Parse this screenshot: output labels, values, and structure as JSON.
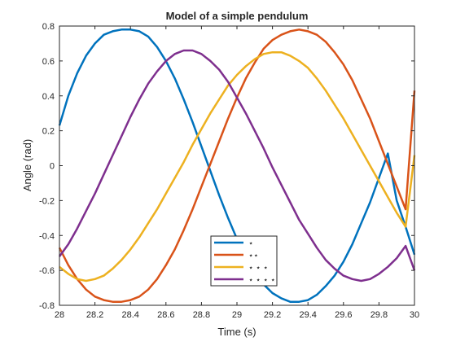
{
  "chart_data": {
    "type": "line",
    "title": "Model of a simple pendulum",
    "xlabel": "Time (s)",
    "ylabel": "Angle (rad)",
    "xlim": [
      28,
      30
    ],
    "ylim": [
      -0.8,
      0.8
    ],
    "xticks": [
      28,
      28.2,
      28.4,
      28.6,
      28.8,
      29,
      29.2,
      29.4,
      29.6,
      29.8,
      30
    ],
    "xtick_labels": [
      "28",
      "28.2",
      "28.4",
      "28.6",
      "28.8",
      "29",
      "29.2",
      "29.4",
      "29.6",
      "29.8",
      "30"
    ],
    "yticks": [
      -0.8,
      -0.6,
      -0.4,
      -0.2,
      0,
      0.2,
      0.4,
      0.6,
      0.8
    ],
    "ytick_labels": [
      "-0.8",
      "-0.6",
      "-0.4",
      "-0.2",
      "0",
      "0.2",
      "0.4",
      "0.6",
      "0.8"
    ],
    "grid": false,
    "legend_position": "bottom-center",
    "series": [
      {
        "name": "⋆",
        "color": "#0072BD",
        "x": [
          28.0,
          28.05,
          28.1,
          28.15,
          28.2,
          28.25,
          28.3,
          28.35,
          28.4,
          28.45,
          28.5,
          28.55,
          28.6,
          28.65,
          28.7,
          28.75,
          28.8,
          28.85,
          28.9,
          28.95,
          29.0,
          29.05,
          29.1,
          29.15,
          29.2,
          29.25,
          29.3,
          29.35,
          29.4,
          29.45,
          29.5,
          29.55,
          29.6,
          29.65,
          29.7,
          29.75,
          29.8,
          29.85,
          29.9,
          29.95,
          30.0
        ],
        "y": [
          0.23,
          0.4,
          0.53,
          0.63,
          0.7,
          0.75,
          0.77,
          0.78,
          0.78,
          0.77,
          0.74,
          0.68,
          0.6,
          0.5,
          0.38,
          0.25,
          0.11,
          -0.03,
          -0.17,
          -0.3,
          -0.42,
          -0.52,
          -0.61,
          -0.68,
          -0.73,
          -0.76,
          -0.78,
          -0.78,
          -0.77,
          -0.74,
          -0.69,
          -0.63,
          -0.55,
          -0.45,
          -0.33,
          -0.21,
          -0.07,
          0.07,
          -0.2,
          -0.35,
          -0.51
        ]
      },
      {
        "name": "⋆⋆",
        "color": "#D95319",
        "x": [
          28.0,
          28.05,
          28.1,
          28.15,
          28.2,
          28.25,
          28.3,
          28.35,
          28.4,
          28.45,
          28.5,
          28.55,
          28.6,
          28.65,
          28.7,
          28.75,
          28.8,
          28.85,
          28.9,
          28.95,
          29.0,
          29.05,
          29.1,
          29.15,
          29.2,
          29.25,
          29.3,
          29.35,
          29.4,
          29.45,
          29.5,
          29.55,
          29.6,
          29.65,
          29.7,
          29.75,
          29.8,
          29.85,
          29.9,
          29.95,
          30.0
        ],
        "y": [
          -0.47,
          -0.57,
          -0.65,
          -0.71,
          -0.75,
          -0.77,
          -0.78,
          -0.78,
          -0.77,
          -0.75,
          -0.71,
          -0.65,
          -0.57,
          -0.48,
          -0.37,
          -0.25,
          -0.12,
          0.01,
          0.14,
          0.27,
          0.39,
          0.5,
          0.59,
          0.67,
          0.72,
          0.75,
          0.77,
          0.78,
          0.77,
          0.75,
          0.71,
          0.65,
          0.58,
          0.49,
          0.38,
          0.27,
          0.14,
          0.01,
          -0.12,
          -0.25,
          0.43
        ]
      },
      {
        "name": "⋆ ⋆ ⋆",
        "color": "#EDB120",
        "x": [
          28.0,
          28.05,
          28.1,
          28.15,
          28.2,
          28.25,
          28.3,
          28.35,
          28.4,
          28.45,
          28.5,
          28.55,
          28.6,
          28.65,
          28.7,
          28.75,
          28.8,
          28.85,
          28.9,
          28.95,
          29.0,
          29.05,
          29.1,
          29.15,
          29.2,
          29.25,
          29.3,
          29.35,
          29.4,
          29.45,
          29.5,
          29.55,
          29.6,
          29.65,
          29.7,
          29.75,
          29.8,
          29.85,
          29.9,
          29.95,
          30.0
        ],
        "y": [
          -0.58,
          -0.62,
          -0.65,
          -0.66,
          -0.65,
          -0.63,
          -0.59,
          -0.54,
          -0.48,
          -0.41,
          -0.33,
          -0.25,
          -0.16,
          -0.07,
          0.02,
          0.12,
          0.21,
          0.3,
          0.38,
          0.46,
          0.52,
          0.57,
          0.61,
          0.64,
          0.65,
          0.65,
          0.63,
          0.6,
          0.56,
          0.5,
          0.43,
          0.35,
          0.27,
          0.18,
          0.09,
          0.0,
          -0.09,
          -0.18,
          -0.27,
          -0.35,
          0.06
        ]
      },
      {
        "name": "⋆ ⋆ ⋆ ⋆",
        "color": "#7E2F8E",
        "x": [
          28.0,
          28.05,
          28.1,
          28.15,
          28.2,
          28.25,
          28.3,
          28.35,
          28.4,
          28.45,
          28.5,
          28.55,
          28.6,
          28.65,
          28.7,
          28.75,
          28.8,
          28.85,
          28.9,
          28.95,
          29.0,
          29.05,
          29.1,
          29.15,
          29.2,
          29.25,
          29.3,
          29.35,
          29.4,
          29.45,
          29.5,
          29.55,
          29.6,
          29.65,
          29.7,
          29.75,
          29.8,
          29.85,
          29.9,
          29.95,
          30.0
        ],
        "y": [
          -0.52,
          -0.45,
          -0.36,
          -0.26,
          -0.16,
          -0.05,
          0.06,
          0.17,
          0.28,
          0.38,
          0.47,
          0.54,
          0.6,
          0.64,
          0.66,
          0.66,
          0.64,
          0.6,
          0.55,
          0.48,
          0.39,
          0.3,
          0.2,
          0.1,
          -0.01,
          -0.11,
          -0.21,
          -0.31,
          -0.39,
          -0.47,
          -0.54,
          -0.59,
          -0.63,
          -0.65,
          -0.66,
          -0.65,
          -0.62,
          -0.58,
          -0.53,
          -0.46,
          -0.6
        ]
      }
    ]
  }
}
